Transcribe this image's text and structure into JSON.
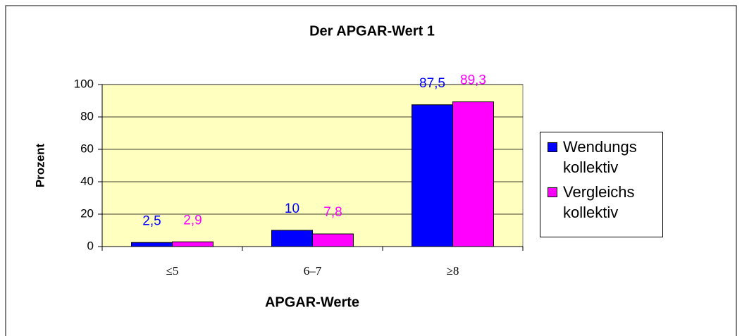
{
  "chart_data": {
    "type": "bar",
    "title": "Der APGAR-Wert 1",
    "x_label": "APGAR-Werte",
    "y_label": "Prozent",
    "categories": [
      "≤5",
      "6–7",
      "≥8"
    ],
    "series": [
      {
        "name": "Wendungs kollektiv",
        "color": "#0000ff",
        "values": [
          2.5,
          10,
          87.5
        ],
        "value_labels": [
          "2,5",
          "10",
          "87,5"
        ]
      },
      {
        "name": "Vergleichs kollektiv",
        "color": "#ff00ff",
        "values": [
          2.9,
          7.8,
          89.3
        ],
        "value_labels": [
          "2,9",
          "7,8",
          "89,3"
        ]
      }
    ],
    "ylim": [
      0,
      100
    ],
    "yticks": [
      0,
      20,
      40,
      60,
      80,
      100
    ],
    "grid": true,
    "legend": "right"
  }
}
